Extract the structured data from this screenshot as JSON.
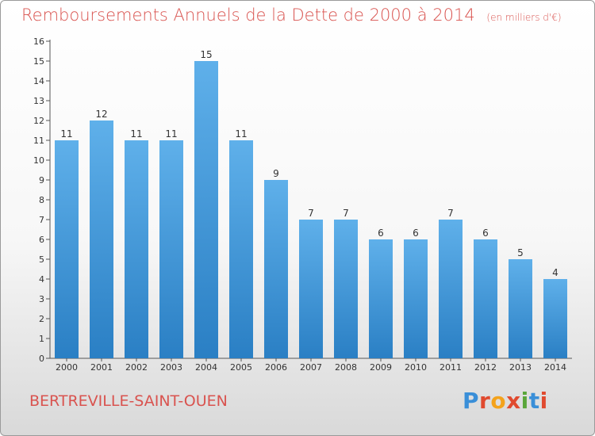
{
  "header": {
    "title": "Remboursements Annuels de la Dette de 2000 à 2014",
    "unit": "(en milliers d'€)"
  },
  "footer": {
    "city": "BERTREVILLE-SAINT-OUEN",
    "brand": "Proxiti"
  },
  "colors": {
    "title": "#d9534f",
    "bar_top": "#5fb0ea",
    "bar_bottom": "#2a7fc4",
    "logo": [
      "#3a8fd8",
      "#e04a2f",
      "#f4a31c",
      "#e04a2f",
      "#5aa63a",
      "#3a8fd8",
      "#e04a2f"
    ]
  },
  "chart_data": {
    "type": "bar",
    "categories": [
      "2000",
      "2001",
      "2002",
      "2003",
      "2004",
      "2005",
      "2006",
      "2007",
      "2008",
      "2009",
      "2010",
      "2011",
      "2012",
      "2013",
      "2014"
    ],
    "values": [
      11,
      12,
      11,
      11,
      15,
      11,
      9,
      7,
      7,
      6,
      6,
      7,
      6,
      5,
      4
    ],
    "ylim": [
      0,
      16
    ],
    "yticks": [
      0,
      1,
      2,
      3,
      4,
      5,
      6,
      7,
      8,
      9,
      10,
      11,
      12,
      13,
      14,
      15,
      16
    ],
    "grid": false,
    "data_labels": true
  }
}
